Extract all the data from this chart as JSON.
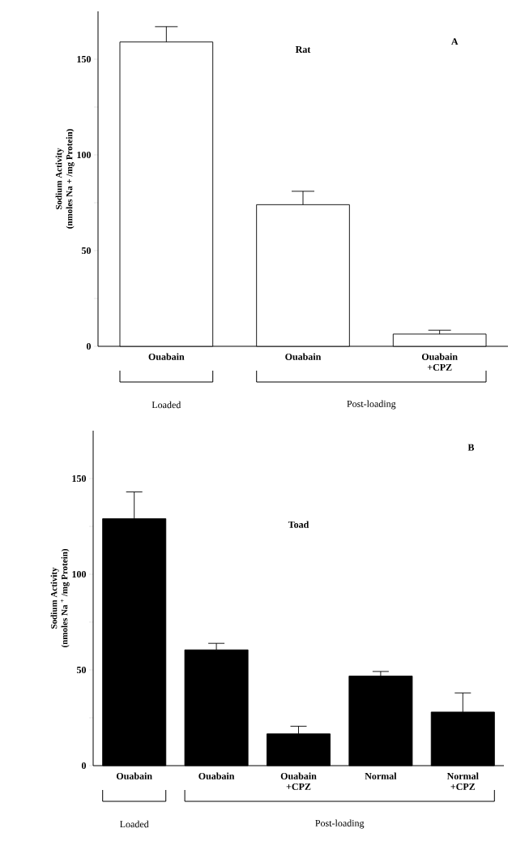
{
  "chart_data": [
    {
      "type": "bar",
      "title": "Rat",
      "ylabel": "Sodium Activity (nmoles Na + /mg Protein)",
      "categories": [
        "Ouabain",
        "Ouabain",
        "Ouabain +CPZ"
      ],
      "values": [
        159,
        74,
        6.4
      ],
      "errors": [
        8,
        7,
        2
      ],
      "color": "#ffffff",
      "ylim": [
        0,
        175
      ],
      "yticks": [
        0,
        {
          "value": 25,
          "label": null
        },
        50,
        {
          "value": 75,
          "label": null
        },
        100,
        {
          "value": 125,
          "label": null
        },
        150
      ],
      "annotations": [
        "A",
        "Loaded",
        "Post-loading"
      ]
    },
    {
      "type": "bar",
      "title": "Toad",
      "ylabel": "Sodium Activity (nmoles Na $^{+}$ /mg Protein)",
      "categories": [
        "Ouabain",
        "Ouabain",
        "Ouabain +CPZ",
        "Normal",
        "Normal +CPZ"
      ],
      "values": [
        129,
        60.5,
        16.6,
        46.8,
        28
      ],
      "errors": [
        14,
        3.4,
        4,
        2.4,
        10
      ],
      "color": "#000000",
      "ylim": [
        0,
        175
      ],
      "yticks": [
        0,
        {
          "value": 25,
          "label": null
        },
        50,
        {
          "value": 75,
          "label": null
        },
        100,
        {
          "value": 125,
          "label": null
        },
        150
      ],
      "annotations": [
        "B",
        "Loaded",
        "Post-loading"
      ]
    }
  ]
}
